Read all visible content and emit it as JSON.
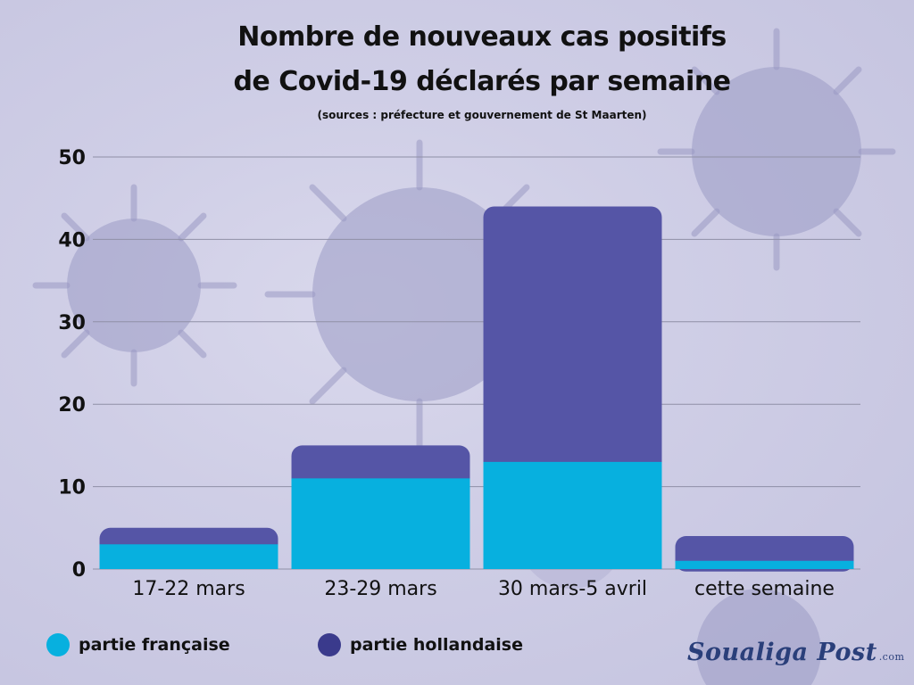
{
  "title_line1": "Nombre de nouveaux cas positifs",
  "title_line2": "de Covid-19  déclarés par semaine",
  "subtitle": "(sources : préfecture et gouvernement de St Maarten)",
  "colors": {
    "french": "#07b0df",
    "dutch": "#5555a6",
    "grid": "#8f8fa6"
  },
  "legend": [
    {
      "label": "partie française",
      "color": "#07b0df"
    },
    {
      "label": "partie hollandaise",
      "color": "#3a3a8c"
    }
  ],
  "logo": {
    "name": "Soualiga Post",
    "suffix": ".com"
  },
  "chart_data": {
    "type": "bar",
    "stacked": true,
    "categories": [
      "17-22 mars",
      "23-29 mars",
      "30 mars-5 avril",
      "cette semaine"
    ],
    "series": [
      {
        "name": "partie française",
        "values": [
          3,
          11,
          13,
          1
        ]
      },
      {
        "name": "partie hollandaise",
        "values": [
          2,
          4,
          31,
          3
        ]
      }
    ],
    "title": "Nombre de nouveaux cas positifs de Covid-19  déclarés par semaine",
    "xlabel": "",
    "ylabel": "",
    "ylim": [
      0,
      50
    ],
    "yticks": [
      0,
      10,
      20,
      30,
      40,
      50
    ],
    "grid": true,
    "legend_position": "bottom-left"
  }
}
